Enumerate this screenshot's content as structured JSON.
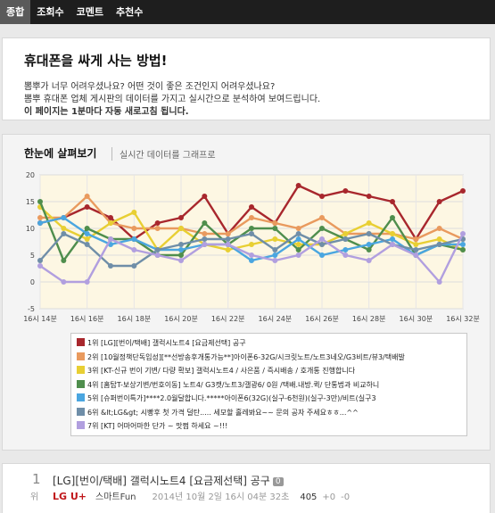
{
  "nav": {
    "tabs": [
      "종합",
      "조회수",
      "코멘트",
      "추천수"
    ]
  },
  "intro": {
    "title": "휴대폰을 싸게 사는 방법!",
    "line1": "뽐뿌가 너무 어려우셨나요? 어떤 것이 좋은 조건인지 어려우셨나요?",
    "line2": "뽐뿌 휴대폰 업체 게시판의 데이터를 가지고 실시간으로 분석하여 보여드립니다.",
    "line3": "이 페이지는 1분마다 자동 새로고침 됩니다."
  },
  "graph": {
    "title": "한눈에 살펴보기",
    "subtitle": "실시간 데이터를 그래프로"
  },
  "colors": {
    "background": "#fdf7e3",
    "series": [
      "#a8272d",
      "#e99a5e",
      "#e8cf33",
      "#4f8e4d",
      "#4aa6e0",
      "#6f8ea8",
      "#b19fdf"
    ]
  },
  "chart_data": {
    "type": "line",
    "x": [
      "16시 14분",
      "16시 15분",
      "16시 16분",
      "16시 17분",
      "16시 18분",
      "16시 19분",
      "16시 20분",
      "16시 21분",
      "16시 22분",
      "16시 23분",
      "16시 24분",
      "16시 25분",
      "16시 26분",
      "16시 27분",
      "16시 28분",
      "16시 29분",
      "16시 30분",
      "16시 31분",
      "16시 32분"
    ],
    "x_tick_labels": [
      "16시 14분",
      "16시 16분",
      "16시 18분",
      "16시 20분",
      "16시 22분",
      "16시 24분",
      "16시 26분",
      "16시 28분",
      "16시 30분",
      "16시 32분"
    ],
    "ylim": [
      -5,
      20
    ],
    "y_ticks": [
      -5,
      0,
      5,
      10,
      15,
      20
    ],
    "grid": true,
    "series": [
      {
        "name": "1위 [LG][번이/택배] 갤럭시노트4 [요금제선택] 공구",
        "values": [
          11,
          12,
          14,
          12,
          8,
          11,
          12,
          16,
          9,
          14,
          11,
          18,
          16,
          17,
          16,
          15,
          8,
          15,
          17
        ]
      },
      {
        "name": "2위 [10월정책단독입성][**선방송후개통가능**]아이폰6-32G/시크릿노트/노트3네오/G3비트/뷰3/택배발",
        "values": [
          12,
          12,
          16,
          11,
          10,
          10,
          10,
          9,
          9,
          12,
          11,
          10,
          12,
          9,
          9,
          9,
          8,
          10,
          8
        ]
      },
      {
        "name": "3위 [KT-신규 번이 기변/ 다량 확보] 갤럭시노트4 / 사은품 / 즉시배송 / 호개통 진행합니다",
        "values": [
          14,
          10,
          8,
          11,
          13,
          6,
          10,
          7,
          6,
          7,
          8,
          7,
          7,
          9,
          11,
          9,
          7,
          8,
          6
        ]
      },
      {
        "name": "4위 [홈탑T-보상기변/번호이동] 노트4/ G3캣/노트3/갤광6/ 0원 /택배.내방.퀵/ 단통법과 비교하니",
        "values": [
          15,
          4,
          10,
          8,
          8,
          5,
          5,
          11,
          7,
          10,
          10,
          6,
          10,
          8,
          6,
          12,
          5,
          7,
          6
        ]
      },
      {
        "name": "5위 [슈퍼번이특가]****2.0월달합니다.*****아이폰6(32G)(실구-6천원)(실구-3만)/비트(실구3",
        "values": [
          11,
          12,
          9,
          7,
          8,
          6,
          6,
          7,
          7,
          4,
          5,
          8,
          5,
          6,
          7,
          8,
          5,
          7,
          7
        ]
      },
      {
        "name": "6위 &lt;LG&gt; 시빵후 첫 가격 덜탄..... 세모할 홀레봐요~~ 문의 공자 주세요ㅎㅎ...^^",
        "values": [
          4,
          9,
          7,
          3,
          3,
          6,
          7,
          8,
          8,
          9,
          6,
          9,
          7,
          8,
          9,
          7,
          6,
          7,
          8
        ]
      },
      {
        "name": "7위 [KT] 어마어마한 단가 ~ 맛쩜 하세요 ~!!!",
        "values": [
          3,
          0,
          0,
          8,
          6,
          5,
          4,
          7,
          7,
          5,
          4,
          5,
          8,
          5,
          4,
          7,
          5,
          0,
          9
        ]
      }
    ]
  },
  "post": {
    "rank": "1",
    "rank_unit": "위",
    "title": "[LG][번이/택배] 갤럭시노트4 [요금제선택] 공구",
    "comments": "0",
    "carrier": "LG U+",
    "store": "스마트Fun",
    "date": "2014년 10월 2일 16시 04분 32초",
    "views": "405",
    "up": "+0",
    "down": "-0"
  }
}
